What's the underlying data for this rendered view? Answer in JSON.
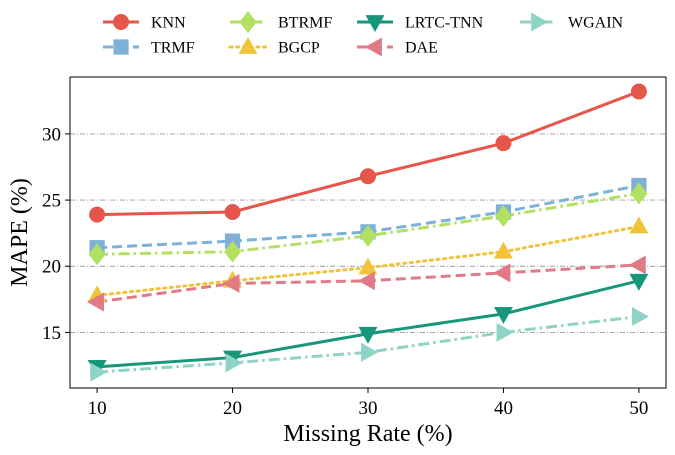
{
  "chart_data": {
    "type": "line",
    "title": "",
    "xlabel": "Missing Rate (%)",
    "ylabel": "MAPE (%)",
    "x": [
      10,
      20,
      30,
      40,
      50
    ],
    "xticks": [
      "10",
      "20",
      "30",
      "40",
      "50"
    ],
    "yticks": [
      "15",
      "20",
      "25",
      "30"
    ],
    "xlim": [
      8,
      52
    ],
    "ylim": [
      10.8,
      34.3
    ],
    "grid": "horizontal dash-dot",
    "legend_position": "top, above plot, 4 columns",
    "series": [
      {
        "name": "KNN",
        "values": [
          23.9,
          24.1,
          26.8,
          29.3,
          33.2
        ],
        "color": "#e6564a",
        "dash": "solid",
        "marker": "circle"
      },
      {
        "name": "TRMF",
        "values": [
          21.4,
          21.9,
          22.6,
          24.1,
          26.1
        ],
        "color": "#7eb0d8",
        "dash": "dashed",
        "marker": "square"
      },
      {
        "name": "BTRMF",
        "values": [
          20.9,
          21.1,
          22.3,
          23.8,
          25.5
        ],
        "color": "#b2e061",
        "dash": "dashdot",
        "marker": "diamond"
      },
      {
        "name": "BGCP",
        "values": [
          17.8,
          18.9,
          19.9,
          21.1,
          23.0
        ],
        "color": "#f0c33a",
        "dash": "dotted",
        "marker": "triangle-up"
      },
      {
        "name": "LRTC-TNN",
        "values": [
          12.4,
          13.1,
          14.9,
          16.4,
          18.9
        ],
        "color": "#16967a",
        "dash": "solid",
        "marker": "triangle-down"
      },
      {
        "name": "DAE",
        "values": [
          17.3,
          18.7,
          18.9,
          19.5,
          20.1
        ],
        "color": "#e07a86",
        "dash": "dashed",
        "marker": "triangle-left"
      },
      {
        "name": "WGAIN",
        "values": [
          12.0,
          12.7,
          13.5,
          15.0,
          16.2
        ],
        "color": "#8ed4c6",
        "dash": "dashdot",
        "marker": "triangle-right"
      }
    ]
  }
}
